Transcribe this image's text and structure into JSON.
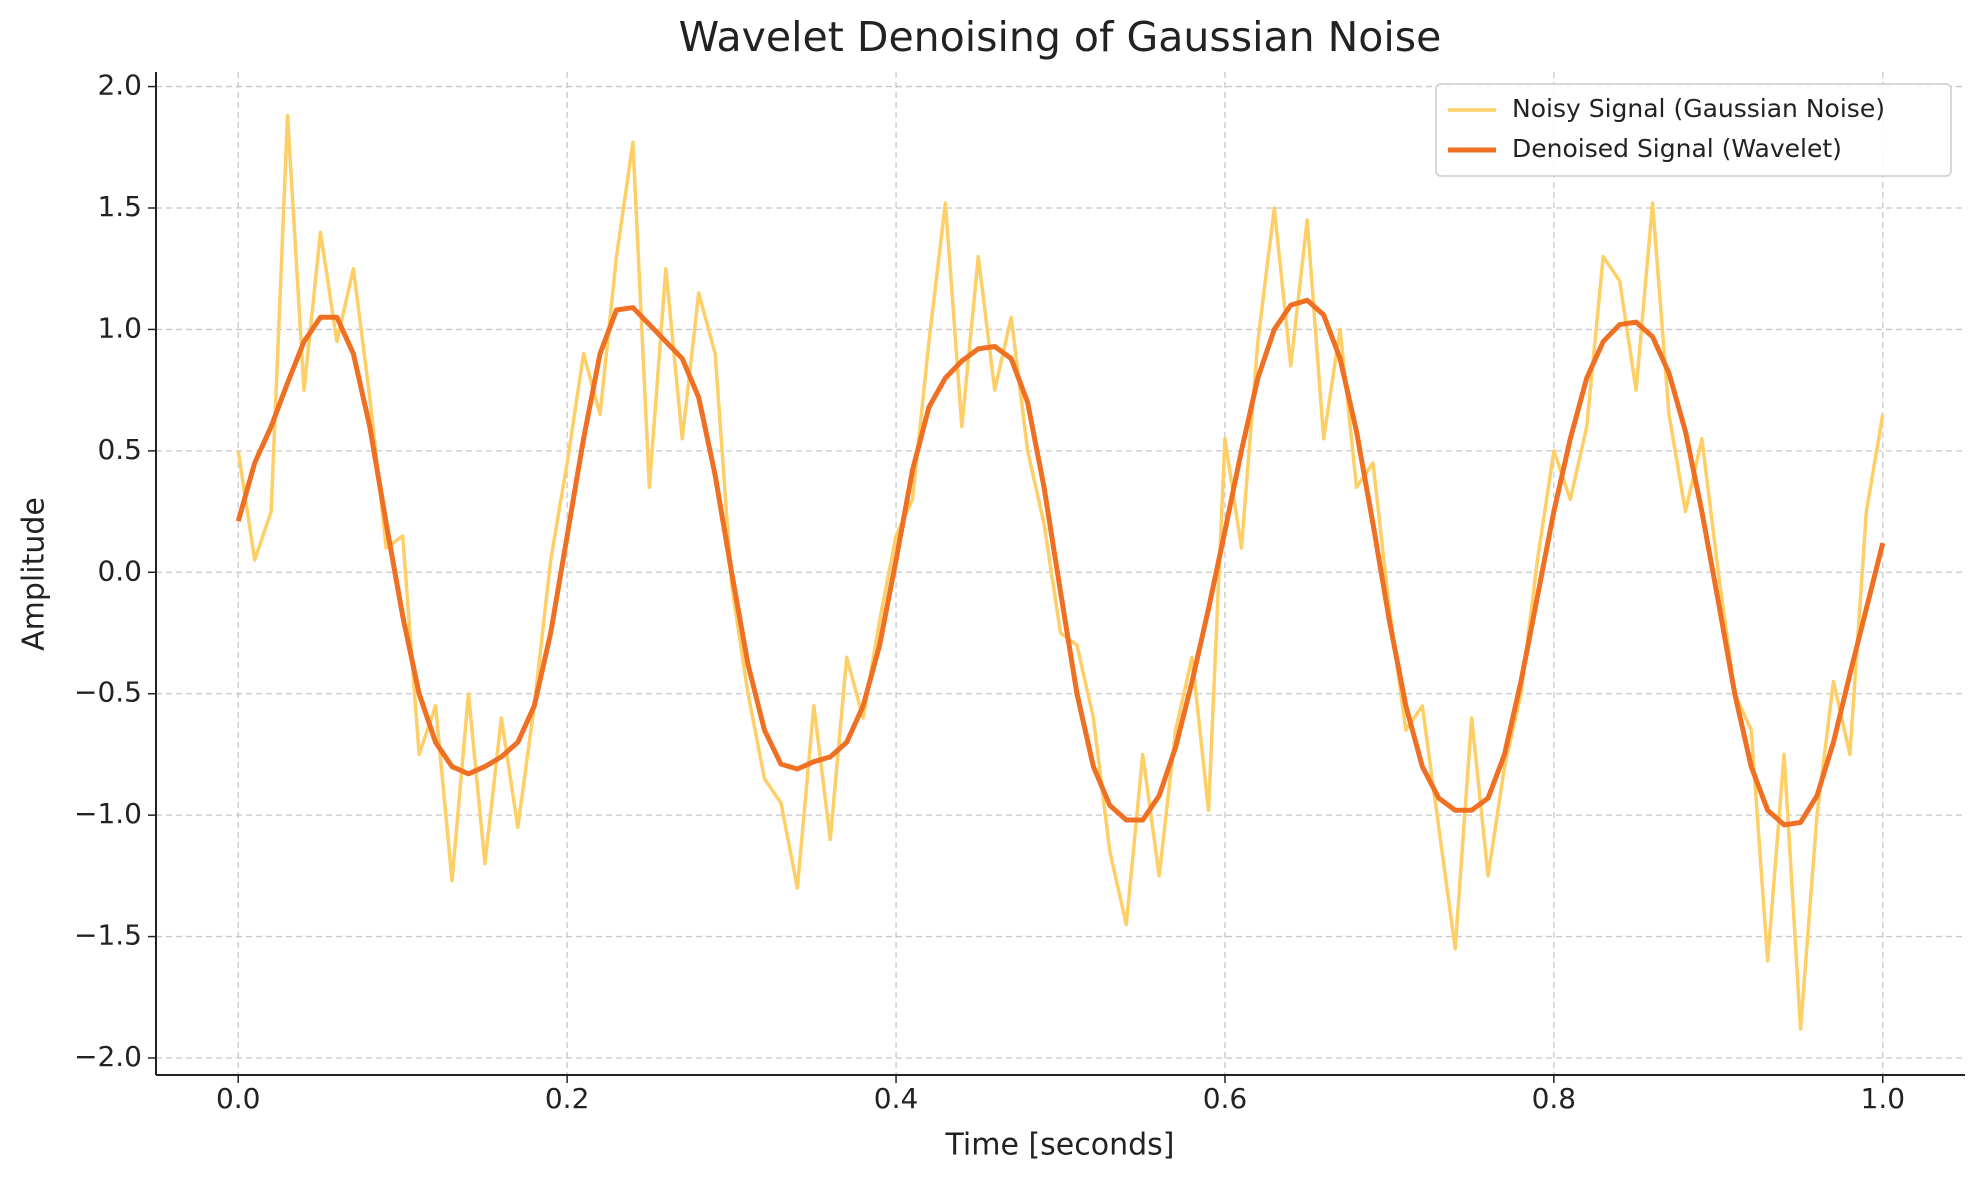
{
  "chart_data": {
    "type": "line",
    "title": "Wavelet Denoising of Gaussian Noise",
    "xlabel": "Time [seconds]",
    "ylabel": "Amplitude",
    "x": [
      0,
      0.01,
      0.02,
      0.03,
      0.04,
      0.05,
      0.06,
      0.07,
      0.08,
      0.09,
      0.1,
      0.11,
      0.12,
      0.13,
      0.14,
      0.15,
      0.16,
      0.17,
      0.18,
      0.19,
      0.2,
      0.21,
      0.22,
      0.23,
      0.24,
      0.25,
      0.26,
      0.27,
      0.28,
      0.29,
      0.3,
      0.31,
      0.32,
      0.33,
      0.34,
      0.35,
      0.36,
      0.37,
      0.38,
      0.39,
      0.4,
      0.41,
      0.42,
      0.43,
      0.44,
      0.45,
      0.46,
      0.47,
      0.48,
      0.49,
      0.5,
      0.51,
      0.52,
      0.53,
      0.54,
      0.55,
      0.56,
      0.57,
      0.58,
      0.59,
      0.6,
      0.61,
      0.62,
      0.63,
      0.64,
      0.65,
      0.66,
      0.67,
      0.68,
      0.69,
      0.7,
      0.71,
      0.72,
      0.73,
      0.74,
      0.75,
      0.76,
      0.77,
      0.78,
      0.79,
      0.8,
      0.81,
      0.82,
      0.83,
      0.84,
      0.85,
      0.86,
      0.87,
      0.88,
      0.89,
      0.9,
      0.91,
      0.92,
      0.93,
      0.94,
      0.95,
      0.96,
      0.97,
      0.98,
      0.99,
      1
    ],
    "series": [
      {
        "name": "Noisy Signal (Gaussian Noise)",
        "color": "#fecf66",
        "width": 3.5,
        "values": [
          0.5,
          0.05,
          0.25,
          1.88,
          0.75,
          1.4,
          0.95,
          1.25,
          0.72,
          0.1,
          0.15,
          -0.75,
          -0.55,
          -1.27,
          -0.5,
          -1.2,
          -0.6,
          -1.05,
          -0.55,
          0.05,
          0.45,
          0.9,
          0.65,
          1.3,
          1.77,
          0.35,
          1.25,
          0.55,
          1.15,
          0.9,
          -0.05,
          -0.5,
          -0.85,
          -0.95,
          -1.3,
          -0.55,
          -1.1,
          -0.35,
          -0.6,
          -0.2,
          0.15,
          0.3,
          0.95,
          1.52,
          0.6,
          1.3,
          0.75,
          1.05,
          0.5,
          0.2,
          -0.25,
          -0.3,
          -0.6,
          -1.15,
          -1.45,
          -0.75,
          -1.25,
          -0.65,
          -0.35,
          -0.98,
          0.55,
          0.1,
          0.95,
          1.5,
          0.85,
          1.45,
          0.55,
          1,
          0.35,
          0.45,
          -0.15,
          -0.65,
          -0.55,
          -1.05,
          -1.55,
          -0.6,
          -1.25,
          -0.8,
          -0.5,
          0.05,
          0.5,
          0.3,
          0.6,
          1.3,
          1.2,
          0.75,
          1.52,
          0.65,
          0.25,
          0.55,
          0,
          -0.5,
          -0.65,
          -1.6,
          -0.75,
          -1.88,
          -1,
          -0.45,
          -0.75,
          0.25,
          0.65
        ]
      },
      {
        "name": "Denoised Signal (Wavelet)",
        "color": "#f07023",
        "width": 5,
        "values": [
          0.21,
          0.45,
          0.6,
          0.78,
          0.95,
          1.05,
          1.05,
          0.9,
          0.6,
          0.2,
          -0.18,
          -0.5,
          -0.7,
          -0.8,
          -0.83,
          -0.8,
          -0.76,
          -0.7,
          -0.55,
          -0.25,
          0.15,
          0.55,
          0.9,
          1.08,
          1.09,
          1.02,
          0.95,
          0.88,
          0.72,
          0.4,
          0,
          -0.38,
          -0.65,
          -0.79,
          -0.81,
          -0.78,
          -0.76,
          -0.7,
          -0.55,
          -0.3,
          0.05,
          0.42,
          0.68,
          0.8,
          0.87,
          0.92,
          0.93,
          0.88,
          0.7,
          0.35,
          -0.08,
          -0.5,
          -0.8,
          -0.96,
          -1.02,
          -1.02,
          -0.92,
          -0.72,
          -0.45,
          -0.15,
          0.17,
          0.5,
          0.8,
          1,
          1.1,
          1.12,
          1.06,
          0.88,
          0.58,
          0.2,
          -0.2,
          -0.55,
          -0.8,
          -0.93,
          -0.98,
          -0.98,
          -0.93,
          -0.75,
          -0.45,
          -0.1,
          0.25,
          0.55,
          0.8,
          0.95,
          1.02,
          1.03,
          0.97,
          0.82,
          0.58,
          0.25,
          -0.12,
          -0.5,
          -0.8,
          -0.98,
          -1.04,
          -1.03,
          -0.92,
          -0.7,
          -0.42,
          -0.15,
          0.12
        ]
      }
    ],
    "xlim": [
      -0.05,
      1.05
    ],
    "ylim": [
      -2.07,
      2.06
    ],
    "xticks": [
      {
        "value": 0,
        "label": "0.0"
      },
      0.2,
      0.4,
      0.6,
      0.8,
      {
        "value": 1,
        "label": "1.0"
      }
    ],
    "yticks": [
      {
        "value": -2,
        "label": "−2.0"
      },
      {
        "value": -1.5,
        "label": "−1.5"
      },
      {
        "value": -1,
        "label": "−1.0"
      },
      {
        "value": -0.5,
        "label": "−0.5"
      },
      {
        "value": 0,
        "label": "0.0"
      },
      0.5,
      {
        "value": 1,
        "label": "1.0"
      },
      1.5,
      {
        "value": 2,
        "label": "2.0"
      }
    ],
    "grid": true,
    "legend": "upper right"
  }
}
